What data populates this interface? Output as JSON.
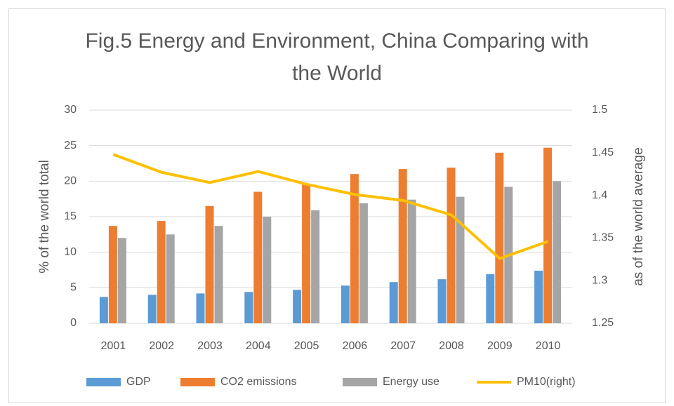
{
  "chart_data": {
    "type": "bar-line",
    "title": "Fig.5 Energy and Environment, China Comparing with the World",
    "y_label": "% of the world total",
    "y2_label": "as of the world average",
    "categories": [
      "2001",
      "2002",
      "2003",
      "2004",
      "2005",
      "2006",
      "2007",
      "2008",
      "2009",
      "2010"
    ],
    "series": [
      {
        "name": "GDP",
        "type": "bar",
        "color": "#5b9bd5",
        "values": [
          3.7,
          4.0,
          4.2,
          4.4,
          4.7,
          5.3,
          5.8,
          6.2,
          6.9,
          7.4
        ]
      },
      {
        "name": "CO2 emissions",
        "type": "bar",
        "color": "#ed7d31",
        "values": [
          13.7,
          14.4,
          16.5,
          18.5,
          19.6,
          21.0,
          21.7,
          21.9,
          24.0,
          24.7
        ]
      },
      {
        "name": "Energy use",
        "type": "bar",
        "color": "#a5a5a5",
        "values": [
          12.0,
          12.5,
          13.7,
          15.0,
          15.9,
          16.9,
          17.4,
          17.8,
          19.2,
          20.0
        ]
      },
      {
        "name": "PM10(right)",
        "type": "line",
        "axis": "y2",
        "color": "#ffc000",
        "values": [
          1.448,
          1.427,
          1.415,
          1.428,
          1.413,
          1.401,
          1.394,
          1.377,
          1.326,
          1.346
        ]
      }
    ],
    "ylim": [
      0,
      30
    ],
    "yticks": [
      0,
      5,
      10,
      15,
      20,
      25,
      30
    ],
    "y2lim": [
      1.25,
      1.5
    ],
    "y2ticks": [
      1.25,
      1.3,
      1.35,
      1.4,
      1.45,
      1.5
    ],
    "grid": true,
    "legend": "bottom"
  }
}
